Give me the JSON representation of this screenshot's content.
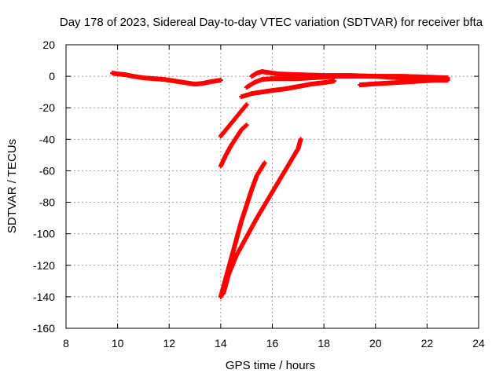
{
  "chart_data": {
    "type": "scatter",
    "title": "Day 178 of 2023, Sidereal Day-to-day VTEC variation (SDTVAR) for receiver bfta",
    "xlabel": "GPS time / hours",
    "ylabel": "SDTVAR / TECUs",
    "xlim": [
      8,
      24
    ],
    "ylim": [
      -160,
      20
    ],
    "xticks": [
      "8",
      "10",
      "12",
      "14",
      "16",
      "18",
      "20",
      "22",
      "24"
    ],
    "yticks": [
      "20",
      "0",
      "-20",
      "-40",
      "-60",
      "-80",
      "-100",
      "-120",
      "-140",
      "-160"
    ],
    "grid": true,
    "marker": "plus",
    "color": "#ff0000",
    "series": [
      {
        "points": [
          [
            9.8,
            2
          ],
          [
            10.0,
            1.5
          ],
          [
            10.3,
            1
          ],
          [
            10.6,
            0
          ],
          [
            11.0,
            -1
          ],
          [
            11.4,
            -1.5
          ],
          [
            11.8,
            -2
          ],
          [
            12.2,
            -3
          ],
          [
            12.6,
            -4
          ],
          [
            13.0,
            -5
          ],
          [
            13.3,
            -4.5
          ],
          [
            13.6,
            -3.5
          ],
          [
            14.0,
            -2.5
          ]
        ]
      },
      {
        "points": [
          [
            15.2,
            0
          ],
          [
            15.4,
            2
          ],
          [
            15.6,
            3
          ],
          [
            15.8,
            2.5
          ],
          [
            16.2,
            1.5
          ],
          [
            17.0,
            1
          ],
          [
            18.0,
            0.5
          ],
          [
            19.0,
            0.5
          ],
          [
            20.0,
            0
          ],
          [
            21.0,
            0
          ],
          [
            22.0,
            -0.5
          ],
          [
            22.8,
            -1
          ]
        ]
      },
      {
        "points": [
          [
            15.0,
            -7
          ],
          [
            15.3,
            -4
          ],
          [
            15.6,
            -2
          ],
          [
            16.0,
            -1.5
          ],
          [
            16.5,
            -1.5
          ],
          [
            17.0,
            -1.5
          ],
          [
            17.5,
            -1
          ],
          [
            18.0,
            -0.5
          ],
          [
            18.5,
            0
          ],
          [
            19.0,
            0
          ],
          [
            20.0,
            0
          ],
          [
            21.0,
            -1
          ],
          [
            22.0,
            -1.5
          ],
          [
            22.8,
            -2
          ]
        ]
      },
      {
        "points": [
          [
            14.8,
            -13
          ],
          [
            15.2,
            -11
          ],
          [
            15.6,
            -10
          ],
          [
            16.0,
            -9
          ],
          [
            16.5,
            -8
          ],
          [
            17.0,
            -6.5
          ],
          [
            17.5,
            -5
          ],
          [
            18.0,
            -4
          ],
          [
            18.4,
            -3
          ]
        ]
      },
      {
        "points": [
          [
            19.4,
            -5.5
          ],
          [
            19.8,
            -5
          ],
          [
            20.3,
            -4.5
          ],
          [
            20.8,
            -4
          ],
          [
            21.3,
            -3.5
          ],
          [
            21.8,
            -3
          ],
          [
            22.3,
            -2.5
          ],
          [
            22.8,
            -2.5
          ]
        ]
      },
      {
        "points": [
          [
            14.0,
            -38
          ],
          [
            14.2,
            -34
          ],
          [
            14.4,
            -30
          ],
          [
            14.6,
            -26
          ],
          [
            14.8,
            -22
          ],
          [
            15.0,
            -18
          ]
        ]
      },
      {
        "points": [
          [
            14.0,
            -57
          ],
          [
            14.2,
            -50
          ],
          [
            14.4,
            -44
          ],
          [
            14.6,
            -39
          ],
          [
            14.8,
            -34
          ],
          [
            15.0,
            -31
          ]
        ]
      },
      {
        "points": [
          [
            14.0,
            -140
          ],
          [
            14.2,
            -128
          ],
          [
            14.4,
            -116
          ],
          [
            14.6,
            -104
          ],
          [
            14.8,
            -92
          ],
          [
            15.0,
            -82
          ],
          [
            15.2,
            -72
          ],
          [
            15.4,
            -63
          ],
          [
            15.7,
            -55
          ]
        ]
      },
      {
        "points": [
          [
            14.1,
            -138
          ],
          [
            14.3,
            -126
          ],
          [
            14.6,
            -114
          ],
          [
            15.0,
            -102
          ],
          [
            15.4,
            -90
          ],
          [
            15.8,
            -79
          ],
          [
            16.2,
            -68
          ],
          [
            16.6,
            -57
          ],
          [
            17.0,
            -46
          ],
          [
            17.1,
            -40
          ]
        ]
      }
    ]
  }
}
